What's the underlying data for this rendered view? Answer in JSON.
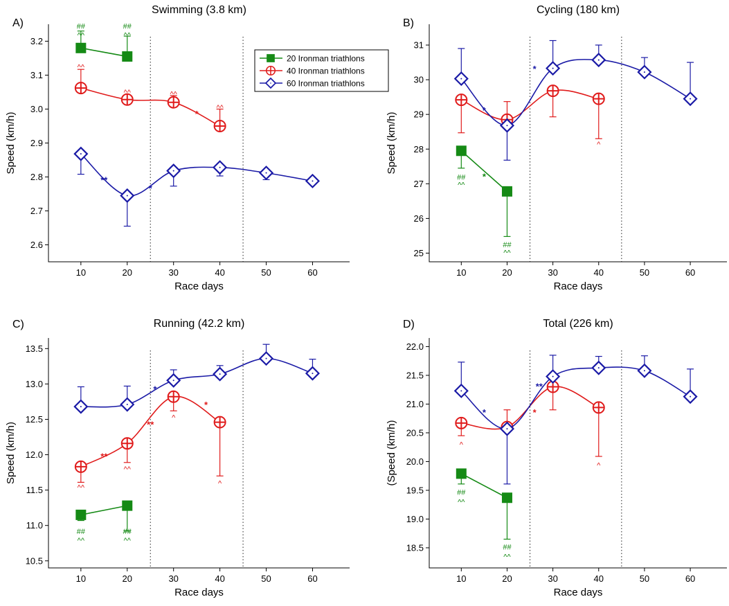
{
  "colors": {
    "s20": "#158a15",
    "s40": "#e01b1b",
    "s60": "#1a1aa6"
  },
  "legend": [
    {
      "name": "20 Ironman triathlons",
      "marker": "filled-square"
    },
    {
      "name": "40 Ironman triathlons",
      "marker": "circle-plus"
    },
    {
      "name": "60 Ironman triathlons",
      "marker": "diamond"
    }
  ],
  "chart_data": [
    {
      "panel_label": "A)",
      "type": "line",
      "title": "Swimming (3.8 km)",
      "xlabel": "Race days",
      "ylabel": "Speed (km/h)",
      "xlim": [
        3,
        68
      ],
      "ylim": [
        2.55,
        3.25
      ],
      "x_ticks": [
        10,
        20,
        30,
        40,
        50,
        60
      ],
      "y_ticks": [
        2.6,
        2.7,
        2.8,
        2.9,
        3.0,
        3.1,
        3.2
      ],
      "y_tick_labels": [
        "2.6",
        "2.7",
        "2.8",
        "2.9",
        "3.0",
        "3.1",
        "3.2"
      ],
      "vlines": [
        25,
        45
      ],
      "legend_position": "top-right",
      "series": [
        {
          "name": "20 Ironman triathlons",
          "key": "s20",
          "x": [
            10,
            20
          ],
          "y": [
            3.18,
            3.155
          ],
          "err": [
            0.05,
            0.06
          ],
          "err_dir": [
            "up",
            "up"
          ]
        },
        {
          "name": "40 Ironman triathlons",
          "key": "s40",
          "x": [
            10,
            20,
            30,
            40
          ],
          "y": [
            3.062,
            3.028,
            3.02,
            2.95
          ],
          "err": [
            0.055,
            0.0,
            0.02,
            0.05
          ],
          "err_dir": [
            "up",
            "up",
            "up",
            "up"
          ]
        },
        {
          "name": "60 Ironman triathlons",
          "key": "s60",
          "x": [
            10,
            20,
            30,
            40,
            50,
            60
          ],
          "y": [
            2.868,
            2.745,
            2.818,
            2.828,
            2.812,
            2.788
          ],
          "err": [
            0.06,
            0.09,
            0.045,
            0.025,
            0.02,
            0.0
          ],
          "err_dir": [
            "down",
            "down",
            "down",
            "down",
            "down",
            "down"
          ]
        }
      ],
      "annotations": [
        {
          "text": "##",
          "x": 10,
          "y": 3.245,
          "key": "s20",
          "kind": "ann"
        },
        {
          "text": "^^",
          "x": 10,
          "y": 3.218,
          "key": "s20",
          "kind": "ann"
        },
        {
          "text": "##",
          "x": 20,
          "y": 3.245,
          "key": "s20",
          "kind": "ann"
        },
        {
          "text": "^^",
          "x": 20,
          "y": 3.218,
          "key": "s20",
          "kind": "ann"
        },
        {
          "text": "^^",
          "x": 10,
          "y": 3.125,
          "key": "s40",
          "kind": "ann"
        },
        {
          "text": "^^",
          "x": 20,
          "y": 3.05,
          "key": "s40",
          "kind": "ann"
        },
        {
          "text": "^^",
          "x": 30,
          "y": 3.045,
          "key": "s40",
          "kind": "ann"
        },
        {
          "text": "^^",
          "x": 40,
          "y": 3.005,
          "key": "s40",
          "kind": "ann"
        },
        {
          "text": "*",
          "x": 35,
          "y": 2.985,
          "key": "s40",
          "kind": "star"
        },
        {
          "text": "**",
          "x": 15,
          "y": 2.79,
          "key": "s60",
          "kind": "star"
        },
        {
          "text": "*",
          "x": 25,
          "y": 2.765,
          "key": "s60",
          "kind": "star"
        }
      ]
    },
    {
      "panel_label": "B)",
      "type": "line",
      "title": "Cycling (180 km)",
      "xlabel": "Race days",
      "ylabel": "Speed (km/h)",
      "xlim": [
        3,
        68
      ],
      "ylim": [
        24.75,
        31.6
      ],
      "x_ticks": [
        10,
        20,
        30,
        40,
        50,
        60
      ],
      "y_ticks": [
        25,
        26,
        27,
        28,
        29,
        30,
        31
      ],
      "y_tick_labels": [
        "25",
        "26",
        "27",
        "28",
        "29",
        "30",
        "31"
      ],
      "vlines": [
        25,
        45
      ],
      "legend_position": "none",
      "series": [
        {
          "name": "20 Ironman triathlons",
          "key": "s20",
          "x": [
            10,
            20
          ],
          "y": [
            27.95,
            26.78
          ],
          "err": [
            0.5,
            1.3
          ],
          "err_dir": [
            "down",
            "down"
          ]
        },
        {
          "name": "40 Ironman triathlons",
          "key": "s40",
          "x": [
            10,
            20,
            30,
            40
          ],
          "y": [
            29.42,
            28.85,
            29.68,
            29.45
          ],
          "err": [
            0.95,
            0.52,
            0.75,
            1.15
          ],
          "err_dir": [
            "down",
            "up",
            "down",
            "down"
          ]
        },
        {
          "name": "60 Ironman triathlons",
          "key": "s60",
          "x": [
            10,
            20,
            30,
            40,
            50,
            60
          ],
          "y": [
            30.03,
            28.68,
            30.33,
            30.57,
            30.22,
            29.45
          ],
          "err": [
            0.87,
            1.0,
            0.8,
            0.43,
            0.42,
            1.05
          ],
          "err_dir": [
            "up",
            "down",
            "up",
            "up",
            "up",
            "up"
          ]
        }
      ],
      "annotations": [
        {
          "text": "##",
          "x": 10,
          "y": 27.2,
          "key": "s20",
          "kind": "ann"
        },
        {
          "text": "^^",
          "x": 10,
          "y": 26.98,
          "key": "s20",
          "kind": "ann"
        },
        {
          "text": "*",
          "x": 15,
          "y": 27.2,
          "key": "s20",
          "kind": "star"
        },
        {
          "text": "##",
          "x": 20,
          "y": 25.25,
          "key": "s20",
          "kind": "ann"
        },
        {
          "text": "^^",
          "x": 20,
          "y": 25.02,
          "key": "s20",
          "kind": "ann"
        },
        {
          "text": "^",
          "x": 40,
          "y": 28.15,
          "key": "s40",
          "kind": "ann"
        },
        {
          "text": "*",
          "x": 15,
          "y": 29.1,
          "key": "s60",
          "kind": "star"
        },
        {
          "text": "*",
          "x": 26,
          "y": 30.3,
          "key": "s60",
          "kind": "star"
        }
      ]
    },
    {
      "panel_label": "C)",
      "type": "line",
      "title": "Running (42.2 km)",
      "xlabel": "Race days",
      "ylabel": "Speed (km/h)",
      "xlim": [
        3,
        68
      ],
      "ylim": [
        10.4,
        13.65
      ],
      "x_ticks": [
        10,
        20,
        30,
        40,
        50,
        60
      ],
      "y_ticks": [
        10.5,
        11.0,
        11.5,
        12.0,
        12.5,
        13.0,
        13.5
      ],
      "y_tick_labels": [
        "10.5",
        "11.0",
        "11.5",
        "12.0",
        "12.5",
        "13.0",
        "13.5"
      ],
      "vlines": [
        25,
        45
      ],
      "legend_position": "none",
      "series": [
        {
          "name": "20 Ironman triathlons",
          "key": "s20",
          "x": [
            10,
            20
          ],
          "y": [
            11.15,
            11.28
          ],
          "err": [
            0.08,
            0.36
          ],
          "err_dir": [
            "down",
            "down"
          ]
        },
        {
          "name": "40 Ironman triathlons",
          "key": "s40",
          "x": [
            10,
            20,
            30,
            40
          ],
          "y": [
            11.83,
            12.16,
            12.82,
            12.46
          ],
          "err": [
            0.22,
            0.27,
            0.2,
            0.76
          ],
          "err_dir": [
            "down",
            "down",
            "down",
            "down"
          ]
        },
        {
          "name": "60 Ironman triathlons",
          "key": "s60",
          "x": [
            10,
            20,
            30,
            40,
            50,
            60
          ],
          "y": [
            12.68,
            12.71,
            13.05,
            13.14,
            13.36,
            13.15
          ],
          "err": [
            0.28,
            0.26,
            0.15,
            0.12,
            0.2,
            0.2
          ],
          "err_dir": [
            "up",
            "up",
            "up",
            "up",
            "up",
            "up"
          ]
        }
      ],
      "annotations": [
        {
          "text": "##",
          "x": 10,
          "y": 10.92,
          "key": "s20",
          "kind": "ann"
        },
        {
          "text": "^^",
          "x": 10,
          "y": 10.79,
          "key": "s20",
          "kind": "ann"
        },
        {
          "text": "##",
          "x": 20,
          "y": 10.92,
          "key": "s20",
          "kind": "ann"
        },
        {
          "text": "^^",
          "x": 20,
          "y": 10.79,
          "key": "s20",
          "kind": "ann"
        },
        {
          "text": "^^",
          "x": 10,
          "y": 11.54,
          "key": "s40",
          "kind": "ann"
        },
        {
          "text": "^^",
          "x": 20,
          "y": 11.8,
          "key": "s40",
          "kind": "ann"
        },
        {
          "text": "^",
          "x": 30,
          "y": 12.53,
          "key": "s40",
          "kind": "ann"
        },
        {
          "text": "^",
          "x": 40,
          "y": 11.6,
          "key": "s40",
          "kind": "ann"
        },
        {
          "text": "**",
          "x": 15,
          "y": 11.97,
          "key": "s40",
          "kind": "star"
        },
        {
          "text": "**",
          "x": 25,
          "y": 12.42,
          "key": "s40",
          "kind": "star"
        },
        {
          "text": "*",
          "x": 37,
          "y": 12.7,
          "key": "s40",
          "kind": "star"
        },
        {
          "text": "*",
          "x": 26,
          "y": 12.92,
          "key": "s60",
          "kind": "star"
        }
      ]
    },
    {
      "panel_label": "D)",
      "type": "line",
      "title": "Total (226 km)",
      "xlabel": "Race days",
      "ylabel": "(Speed (km/h)",
      "xlim": [
        3,
        68
      ],
      "ylim": [
        18.15,
        22.15
      ],
      "x_ticks": [
        10,
        20,
        30,
        40,
        50,
        60
      ],
      "y_ticks": [
        18.5,
        19.0,
        19.5,
        20.0,
        20.5,
        21.0,
        21.5,
        22.0
      ],
      "y_tick_labels": [
        "18.5",
        "19.0",
        "19.5",
        "20.0",
        "20.5",
        "21.0",
        "21.5",
        "22.0"
      ],
      "vlines": [
        25,
        45
      ],
      "legend_position": "none",
      "series": [
        {
          "name": "20 Ironman triathlons",
          "key": "s20",
          "x": [
            10,
            20
          ],
          "y": [
            19.79,
            19.37
          ],
          "err": [
            0.18,
            0.72
          ],
          "err_dir": [
            "down",
            "down"
          ]
        },
        {
          "name": "40 Ironman triathlons",
          "key": "s40",
          "x": [
            10,
            20,
            30,
            40
          ],
          "y": [
            20.67,
            20.6,
            21.3,
            20.94
          ],
          "err": [
            0.22,
            0.3,
            0.4,
            0.85
          ],
          "err_dir": [
            "down",
            "up",
            "down",
            "down"
          ]
        },
        {
          "name": "60 Ironman triathlons",
          "key": "s60",
          "x": [
            10,
            20,
            30,
            40,
            50,
            60
          ],
          "y": [
            21.23,
            20.57,
            21.48,
            21.63,
            21.58,
            21.13
          ],
          "err": [
            0.5,
            0.96,
            0.37,
            0.2,
            0.26,
            0.48
          ],
          "err_dir": [
            "up",
            "down",
            "up",
            "up",
            "up",
            "up"
          ]
        }
      ],
      "annotations": [
        {
          "text": "##",
          "x": 10,
          "y": 19.47,
          "key": "s20",
          "kind": "ann"
        },
        {
          "text": "^^",
          "x": 10,
          "y": 19.3,
          "key": "s20",
          "kind": "ann"
        },
        {
          "text": "##",
          "x": 20,
          "y": 18.52,
          "key": "s20",
          "kind": "ann"
        },
        {
          "text": "^^",
          "x": 20,
          "y": 18.35,
          "key": "s20",
          "kind": "ann"
        },
        {
          "text": "^",
          "x": 10,
          "y": 20.3,
          "key": "s40",
          "kind": "ann"
        },
        {
          "text": "^",
          "x": 40,
          "y": 19.94,
          "key": "s40",
          "kind": "ann"
        },
        {
          "text": "*",
          "x": 26,
          "y": 20.85,
          "key": "s40",
          "kind": "star"
        },
        {
          "text": "*",
          "x": 15,
          "y": 20.85,
          "key": "s60",
          "kind": "star"
        },
        {
          "text": "**",
          "x": 27,
          "y": 21.3,
          "key": "s60",
          "kind": "star"
        }
      ]
    }
  ]
}
